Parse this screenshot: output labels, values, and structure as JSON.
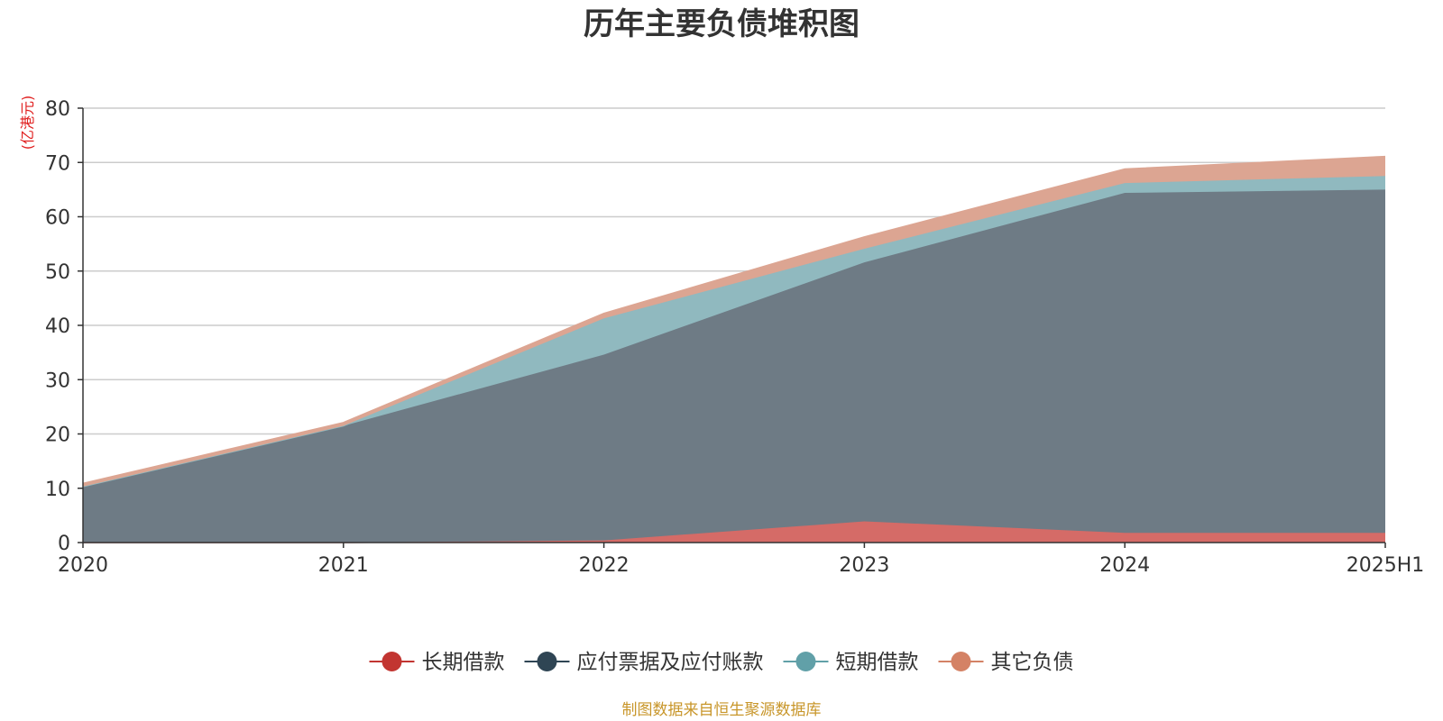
{
  "chart_data": {
    "type": "area",
    "stacked": true,
    "title": "历年主要负债堆积图",
    "unit_label": "(亿港元)",
    "categories": [
      "2020",
      "2021",
      "2022",
      "2023",
      "2024",
      "2025H1"
    ],
    "y_ticks": [
      "0",
      "10",
      "20",
      "30",
      "40",
      "50",
      "60",
      "70",
      "80"
    ],
    "ylim": [
      0,
      80
    ],
    "grid": true,
    "legend_position": "bottom",
    "series": [
      {
        "name": "长期借款",
        "color": "#c23531",
        "fill": "#d56b67",
        "values": [
          0,
          0,
          0.4,
          3.9,
          1.8,
          1.8
        ]
      },
      {
        "name": "应付票据及应付账款",
        "color": "#2f4554",
        "fill": "#6e7b85",
        "values": [
          10.3,
          21.5,
          34.2,
          47.7,
          62.6,
          63.2
        ]
      },
      {
        "name": "短期借款",
        "color": "#61a0a8",
        "fill": "#90b9bf",
        "values": [
          0,
          0,
          6.7,
          2.5,
          1.8,
          2.5
        ]
      },
      {
        "name": "其它负债",
        "color": "#d48265",
        "fill": "#dca592",
        "values": [
          0.6,
          0.6,
          0.9,
          2.2,
          2.6,
          3.6
        ]
      }
    ],
    "source_note": "制图数据来自恒生聚源数据库",
    "source_color": "#c8962a",
    "unit_color": "#e02020"
  }
}
